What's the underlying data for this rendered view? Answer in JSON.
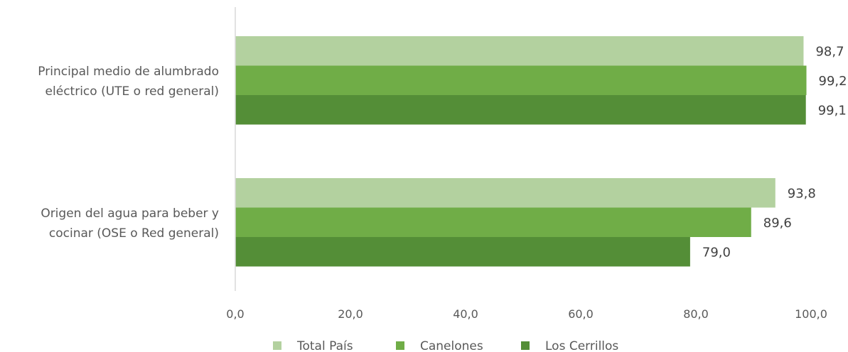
{
  "chart_data": {
    "type": "bar",
    "orientation": "horizontal",
    "categories": [
      [
        "Principal medio de alumbrado",
        "eléctrico (UTE o red general)"
      ],
      [
        "Origen del agua para beber y",
        "cocinar (OSE o Red general)"
      ]
    ],
    "series": [
      {
        "name": "Total  País",
        "color": "#b3d19f",
        "values": [
          98.7,
          93.8
        ],
        "labels": [
          "98,7",
          "93,8"
        ]
      },
      {
        "name": "Canelones",
        "color": "#70ad47",
        "values": [
          99.2,
          89.6
        ],
        "labels": [
          "99,2",
          "89,6"
        ]
      },
      {
        "name": "Los  Cerrillos",
        "color": "#548e37",
        "values": [
          99.1,
          79.0
        ],
        "labels": [
          "99,1",
          "79,0"
        ]
      }
    ],
    "xlim": [
      0,
      100
    ],
    "x_ticks": [
      0,
      20,
      40,
      60,
      80,
      100
    ],
    "x_tick_labels": [
      "0,0",
      "20,0",
      "40,0",
      "60,0",
      "80,0",
      "100,0"
    ],
    "grid": false,
    "legend_position": "bottom"
  }
}
